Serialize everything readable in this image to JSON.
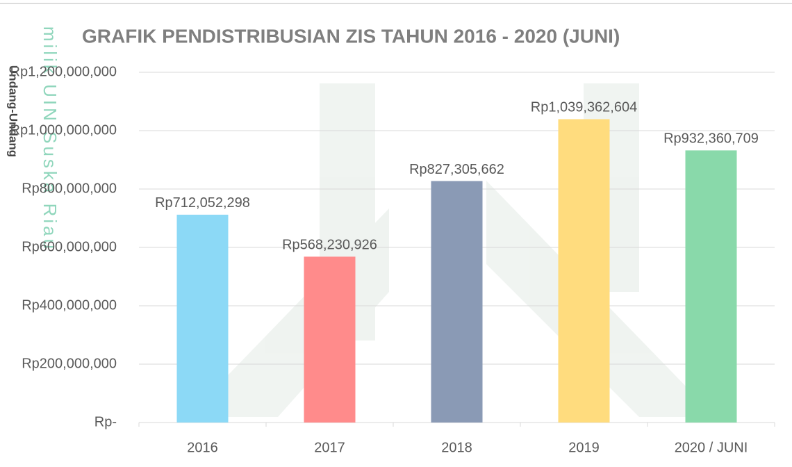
{
  "chart_data": {
    "type": "bar",
    "title": "GRAFIK PENDISTRIBUSIAN ZIS TAHUN 2016 - 2020 (JUNI)",
    "categories": [
      "2016",
      "2017",
      "2018",
      "2019",
      "2020 / JUNI"
    ],
    "values": [
      712052298,
      568230926,
      827305662,
      1039362604,
      932360709
    ],
    "value_labels": [
      "Rp712,052,298",
      "Rp568,230,926",
      "Rp827,305,662",
      "Rp1,039,362,604",
      "Rp932,360,709"
    ],
    "colors": [
      "#8cd9f6",
      "#ff8b8b",
      "#8a9ab5",
      "#ffdc7e",
      "#89d9aa"
    ],
    "ylim": [
      0,
      1200000000
    ],
    "yticks": [
      {
        "value": 0,
        "label": "Rp-"
      },
      {
        "value": 200000000,
        "label": "Rp200,000,000"
      },
      {
        "value": 400000000,
        "label": "Rp400,000,000"
      },
      {
        "value": 600000000,
        "label": "Rp600,000,000"
      },
      {
        "value": 800000000,
        "label": "Rp800,000,000"
      },
      {
        "value": 1000000000,
        "label": "Rp1,000,000,000"
      },
      {
        "value": 1200000000,
        "label": "Rp1,200,000,000"
      }
    ],
    "grid": true
  },
  "watermark": {
    "side": "Undang-Undang",
    "vertical": "milik UIN Suska Riau"
  }
}
